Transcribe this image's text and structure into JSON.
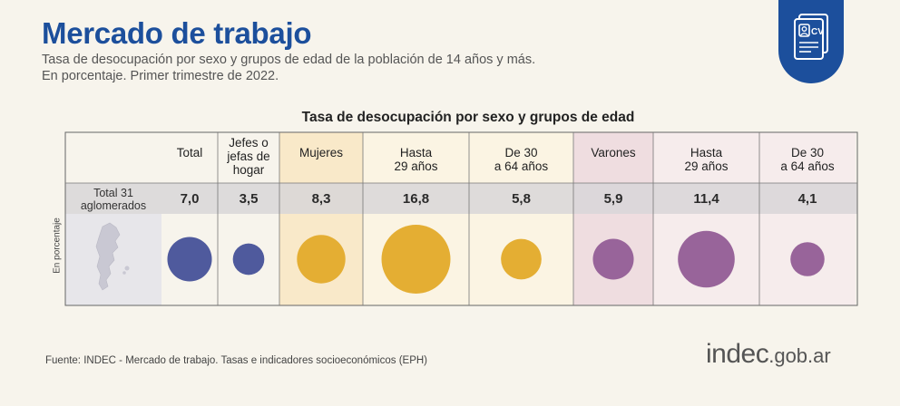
{
  "header": {
    "title": "Mercado de trabajo",
    "subtitle_line1": "Tasa de desocupación por sexo y grupos de edad de la población de 14 años y más.",
    "subtitle_line2": "En porcentaje. Primer trimestre de 2022.",
    "badge_icon": "cv-document-icon",
    "badge_label": "CV"
  },
  "chart_data": {
    "type": "bubble-table",
    "title": "Tasa de desocupación por sexo y grupos de edad",
    "ylabel": "En porcentaje",
    "row_label_line1": "Total 31",
    "row_label_line2": "aglomerados",
    "map_icon": "argentina-map-icon",
    "columns": [
      {
        "label": [
          "Total"
        ],
        "value": 7.0,
        "display": "7,0",
        "color": "#4f5a9d",
        "group": "total"
      },
      {
        "label": [
          "Jefes o",
          "jefas de",
          "hogar"
        ],
        "value": 3.5,
        "display": "3,5",
        "color": "#4f5a9d",
        "group": "total"
      },
      {
        "label": [
          "Mujeres"
        ],
        "value": 8.3,
        "display": "8,3",
        "color": "#e4ae33",
        "group": "mujeres"
      },
      {
        "label": [
          "Hasta",
          "29 años"
        ],
        "value": 16.8,
        "display": "16,8",
        "color": "#e4ae33",
        "group": "mujeres"
      },
      {
        "label": [
          "De 30",
          "a 64 años"
        ],
        "value": 5.8,
        "display": "5,8",
        "color": "#e4ae33",
        "group": "mujeres"
      },
      {
        "label": [
          "Varones"
        ],
        "value": 5.9,
        "display": "5,9",
        "color": "#98649a",
        "group": "varones"
      },
      {
        "label": [
          "Hasta",
          "29 años"
        ],
        "value": 11.4,
        "display": "11,4",
        "color": "#98649a",
        "group": "varones"
      },
      {
        "label": [
          "De 30",
          "a 64 años"
        ],
        "value": 4.1,
        "display": "4,1",
        "color": "#98649a",
        "group": "varones"
      }
    ],
    "group_backgrounds": {
      "mujeres_total": "#f9e9c9",
      "mujeres_sub": "#fbf4e3",
      "varones_total": "#efdde0",
      "varones_sub": "#f6ecec"
    }
  },
  "footer": {
    "source": "Fuente: INDEC - Mercado de trabajo. Tasas e indicadores socioeconómicos (EPH)",
    "logo_main": "indec",
    "logo_suffix": ".gob.ar"
  }
}
